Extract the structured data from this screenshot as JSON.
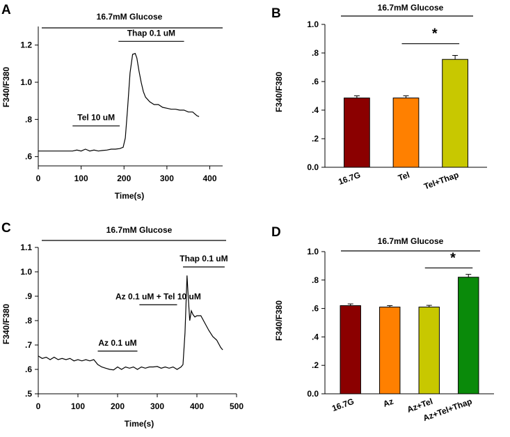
{
  "colors": {
    "dark_red": "#8b0000",
    "orange": "#ff8000",
    "olive_yellow": "#c8c800",
    "green": "#0a8a0a",
    "black": "#000000"
  },
  "chart_data": [
    {
      "panel": "A",
      "type": "line",
      "title": "16.7mM  Glucose",
      "xlabel": "Time(s)",
      "ylabel": "F340/F380",
      "xlim": [
        0,
        430
      ],
      "ylim": [
        0.55,
        1.3
      ],
      "xticks": [
        0,
        100,
        200,
        300,
        400
      ],
      "xtick_labels": [
        "0",
        "100",
        "200",
        "300",
        "400"
      ],
      "yticks": [
        0.6,
        0.8,
        1.0,
        1.2
      ],
      "ytick_labels": [
        ".6",
        ".8",
        "1.0",
        "1.2"
      ],
      "annotations": [
        {
          "label": "Tel 10 uM",
          "x_range": [
            80,
            190
          ],
          "y": 0.765
        },
        {
          "label": "Thap 0.1 uM",
          "x_range": [
            187,
            340
          ],
          "y": 1.22
        }
      ],
      "series": [
        {
          "name": "trace",
          "x": [
            0,
            20,
            40,
            60,
            80,
            90,
            100,
            110,
            120,
            130,
            140,
            150,
            160,
            170,
            180,
            190,
            198,
            203,
            208,
            214,
            220,
            226,
            230,
            235,
            240,
            245,
            250,
            260,
            270,
            280,
            290,
            300,
            310,
            320,
            330,
            340,
            350,
            360,
            370,
            375
          ],
          "y": [
            0.63,
            0.63,
            0.63,
            0.63,
            0.63,
            0.635,
            0.63,
            0.64,
            0.63,
            0.635,
            0.63,
            0.633,
            0.635,
            0.64,
            0.64,
            0.643,
            0.65,
            0.7,
            0.85,
            1.05,
            1.15,
            1.155,
            1.13,
            1.06,
            1.0,
            0.95,
            0.92,
            0.895,
            0.88,
            0.88,
            0.865,
            0.86,
            0.855,
            0.855,
            0.85,
            0.85,
            0.84,
            0.84,
            0.82,
            0.815
          ]
        }
      ]
    },
    {
      "panel": "B",
      "type": "bar",
      "title": "16.7mM  Glucose",
      "xlabel": "",
      "ylabel": "F340/F380",
      "ylim": [
        0.0,
        1.0
      ],
      "yticks": [
        0.0,
        0.2,
        0.4,
        0.6,
        0.8,
        1.0
      ],
      "ytick_labels": [
        "0.0",
        ".2",
        ".4",
        ".6",
        ".8",
        "1.0"
      ],
      "categories": [
        "16.7G",
        "Tel",
        "Tel+Thap"
      ],
      "values": [
        0.485,
        0.485,
        0.755
      ],
      "errors": [
        0.015,
        0.015,
        0.028
      ],
      "bar_colors": [
        "#8b0000",
        "#ff8000",
        "#c8c800"
      ],
      "significance": {
        "label": "*",
        "between": [
          1,
          2
        ],
        "y": 0.865
      }
    },
    {
      "panel": "C",
      "type": "line",
      "title": "16.7mM  Glucose",
      "xlabel": "Time(s)",
      "ylabel": "F340/F380",
      "xlim": [
        0,
        500
      ],
      "ylim": [
        0.5,
        1.1
      ],
      "xticks": [
        0,
        100,
        200,
        300,
        400,
        500
      ],
      "xtick_labels": [
        "0",
        "100",
        "200",
        "300",
        "400",
        "500"
      ],
      "yticks": [
        0.5,
        0.6,
        0.7,
        0.8,
        0.9,
        1.0,
        1.1
      ],
      "ytick_labels": [
        ".5",
        ".6",
        ".7",
        ".8",
        ".9",
        "1.0",
        "1.1"
      ],
      "annotations": [
        {
          "label": "Az 0.1 uM",
          "x_range": [
            150,
            250
          ],
          "y": 0.675
        },
        {
          "label": "Az 0.1 uM + Tel 10 uM",
          "x_range": [
            255,
            350
          ],
          "y": 0.865
        },
        {
          "label": "Thap 0.1 uM",
          "x_range": [
            365,
            470
          ],
          "y": 1.02
        }
      ],
      "series": [
        {
          "name": "trace",
          "x": [
            0,
            10,
            20,
            30,
            40,
            50,
            60,
            70,
            80,
            90,
            100,
            110,
            120,
            130,
            140,
            150,
            160,
            170,
            180,
            190,
            200,
            210,
            220,
            230,
            240,
            250,
            260,
            270,
            280,
            290,
            300,
            310,
            320,
            330,
            340,
            350,
            360,
            365,
            370,
            375,
            378,
            382,
            386,
            390,
            395,
            400,
            410,
            420,
            430,
            440,
            450,
            460,
            465
          ],
          "y": [
            0.655,
            0.645,
            0.65,
            0.64,
            0.65,
            0.64,
            0.645,
            0.64,
            0.645,
            0.635,
            0.64,
            0.635,
            0.64,
            0.635,
            0.64,
            0.62,
            0.61,
            0.605,
            0.6,
            0.598,
            0.61,
            0.6,
            0.61,
            0.605,
            0.61,
            0.6,
            0.61,
            0.605,
            0.61,
            0.61,
            0.612,
            0.605,
            0.61,
            0.605,
            0.61,
            0.6,
            0.61,
            0.62,
            0.75,
            0.985,
            0.9,
            0.8,
            0.84,
            0.825,
            0.815,
            0.82,
            0.82,
            0.79,
            0.76,
            0.735,
            0.72,
            0.69,
            0.68
          ]
        }
      ]
    },
    {
      "panel": "D",
      "type": "bar",
      "title": "16.7mM  Glucose",
      "xlabel": "",
      "ylabel": "F340/F380",
      "ylim": [
        0.0,
        1.0
      ],
      "yticks": [
        0.0,
        0.2,
        0.4,
        0.6,
        0.8,
        1.0
      ],
      "ytick_labels": [
        "0.0",
        ".2",
        ".4",
        ".6",
        ".8",
        "1.0"
      ],
      "categories": [
        "16.7G",
        "Az",
        "Az+Tel",
        "Az+Tel+Thap"
      ],
      "values": [
        0.62,
        0.61,
        0.61,
        0.82
      ],
      "errors": [
        0.012,
        0.01,
        0.012,
        0.02
      ],
      "bar_colors": [
        "#8b0000",
        "#ff8000",
        "#c8c800",
        "#0a8a0a"
      ],
      "significance": {
        "label": "*",
        "between": [
          2,
          3
        ],
        "y": 0.885
      }
    }
  ]
}
